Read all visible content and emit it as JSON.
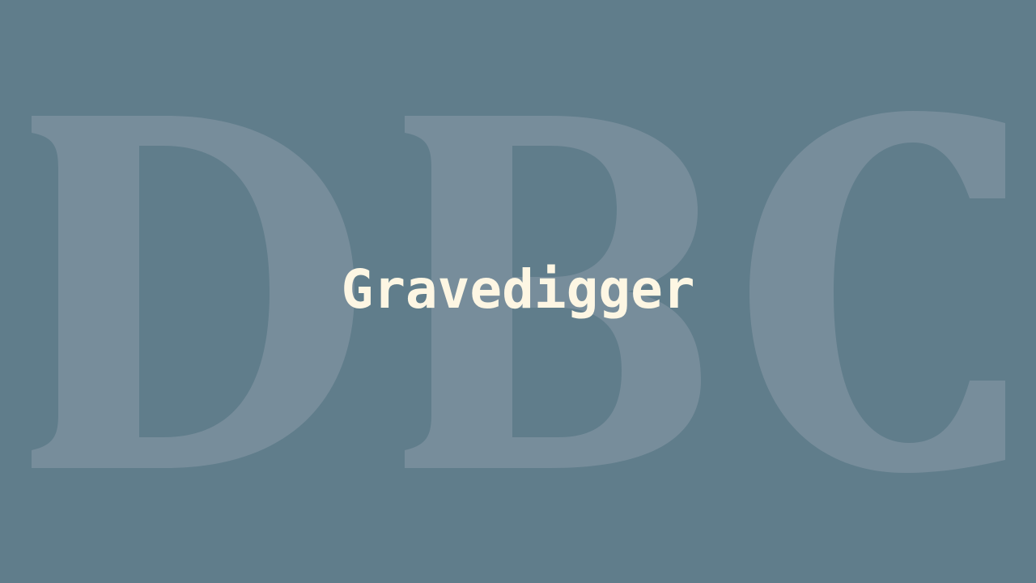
{
  "backdrop": {
    "logo_text": "DBC",
    "letter_color": "#778d9b"
  },
  "background_color": "#607d8b",
  "title": {
    "text": "Gravedigger",
    "color": "#fdf6e3"
  }
}
